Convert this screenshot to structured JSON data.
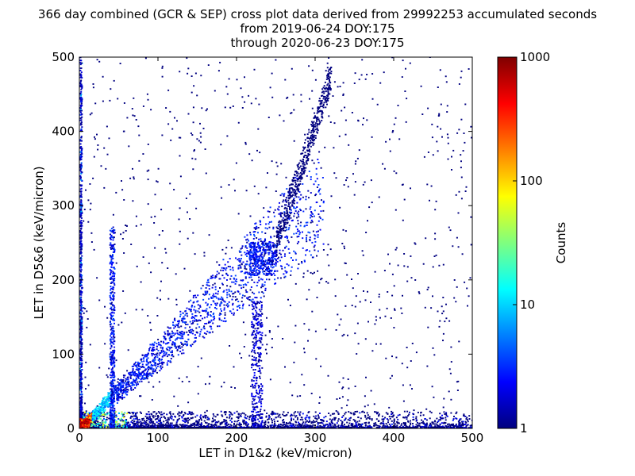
{
  "title": {
    "line1": "366 day combined (GCR & SEP) cross plot data derived from 29992253 accumulated seconds",
    "line2": "from 2019-06-24 DOY:175",
    "line3": "through 2020-06-23 DOY:175"
  },
  "chart_data": {
    "type": "heatmap",
    "xlabel": "LET in D1&2 (keV/micron)",
    "ylabel": "LET in D5&6 (keV/micron)",
    "xlim": [
      0,
      500
    ],
    "ylim": [
      0,
      500
    ],
    "xticks": [
      0,
      100,
      200,
      300,
      400,
      500
    ],
    "yticks": [
      0,
      100,
      200,
      300,
      400,
      500
    ],
    "colorbar": {
      "label": "Counts",
      "scale": "log",
      "range": [
        1,
        1000
      ],
      "ticks": [
        1,
        10,
        100,
        1000
      ],
      "colormap": "jet",
      "colors": [
        "#00007f",
        "#0000ff",
        "#007fff",
        "#00ffff",
        "#7fff7f",
        "#ffff00",
        "#ff7f00",
        "#ff0000",
        "#7f0000"
      ]
    },
    "features": [
      {
        "name": "diagonal band",
        "x": [
          5,
          310
        ],
        "y": [
          5,
          480
        ],
        "peak_counts": 1000
      },
      {
        "name": "cluster near 230",
        "x": [
          210,
          250
        ],
        "y": [
          210,
          250
        ],
        "peak_counts": 5
      },
      {
        "name": "bottom band",
        "x": [
          0,
          500
        ],
        "y": [
          0,
          20
        ],
        "peak_counts": 1000
      },
      {
        "name": "left band",
        "x": [
          0,
          3
        ],
        "y": [
          0,
          500
        ],
        "peak_counts": 20
      },
      {
        "name": "vertical streak 40",
        "x": [
          38,
          44
        ],
        "y": [
          0,
          270
        ],
        "peak_counts": 5
      },
      {
        "name": "vertical streak 225",
        "x": [
          218,
          232
        ],
        "y": [
          0,
          170
        ],
        "peak_counts": 3
      }
    ]
  }
}
